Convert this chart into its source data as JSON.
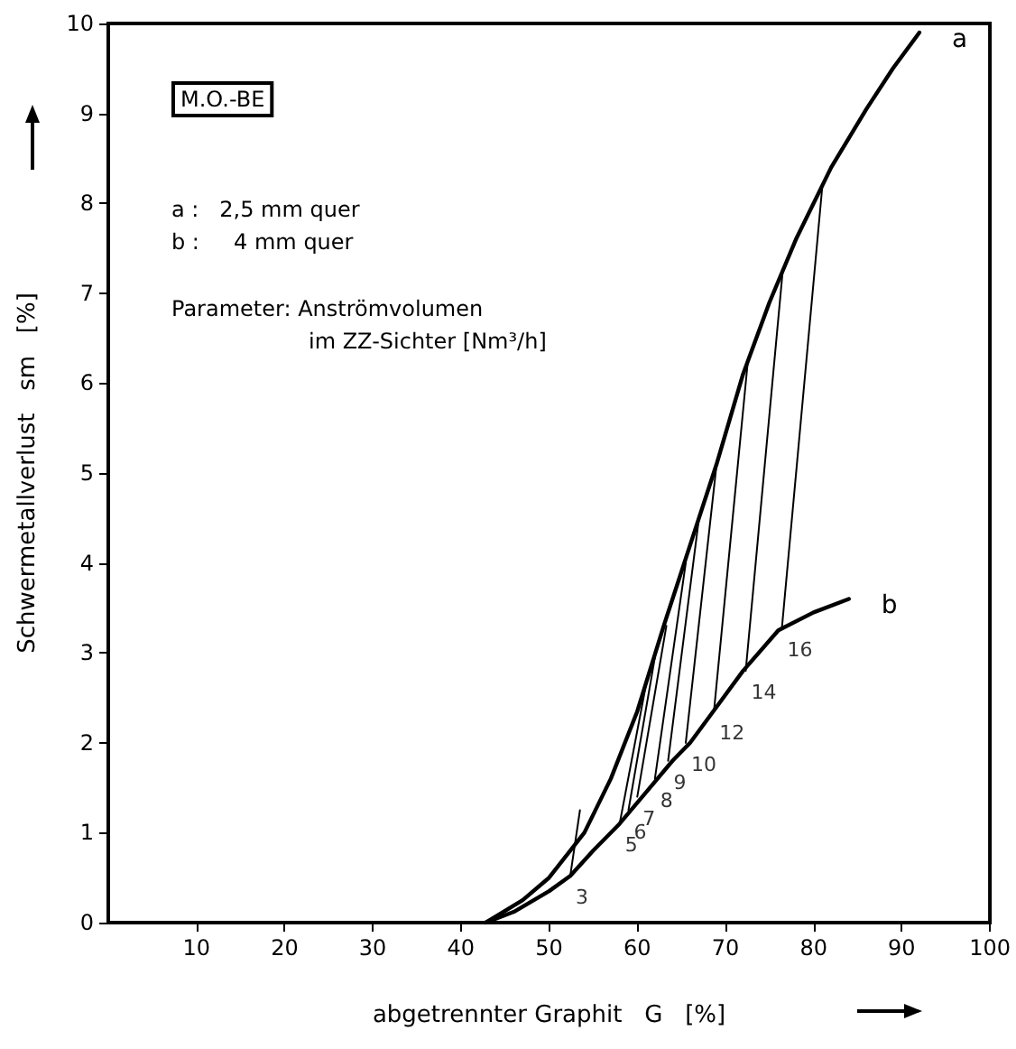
{
  "chart_data": {
    "type": "line",
    "xlabel": "abgetrennter Graphit   G   [%]",
    "ylabel": "Schwermetallverlust   sm   [%]",
    "xlim": [
      0,
      100
    ],
    "xticks": [
      10,
      20,
      30,
      40,
      50,
      60,
      70,
      80,
      90,
      100
    ],
    "ylim": [
      0,
      10
    ],
    "yticks": [
      0,
      1,
      2,
      3,
      4,
      5,
      6,
      7,
      8,
      9,
      10
    ],
    "grid": false,
    "legend": false,
    "marker": "none",
    "line_style": "solid",
    "series": [
      {
        "name": "a",
        "color": "#000000",
        "x": [
          42.8,
          47,
          50,
          54,
          57,
          60,
          63,
          66,
          69,
          72,
          75,
          78,
          82,
          86,
          89,
          92
        ],
        "values": [
          0,
          0.25,
          0.5,
          1.0,
          1.6,
          2.35,
          3.3,
          4.2,
          5.1,
          6.1,
          6.9,
          7.6,
          8.4,
          9.05,
          9.5,
          9.9
        ]
      },
      {
        "name": "b",
        "color": "#000000",
        "x": [
          42.8,
          46,
          50,
          52.4,
          55,
          58,
          61,
          64,
          66,
          69,
          72,
          76,
          80,
          84
        ],
        "values": [
          0,
          0.12,
          0.35,
          0.52,
          0.8,
          1.1,
          1.45,
          1.8,
          2.0,
          2.4,
          2.8,
          3.25,
          3.45,
          3.6
        ]
      },
      {
        "color": "#000000",
        "x": [
          52.4,
          53.5
        ],
        "values": [
          0.52,
          1.25
        ]
      },
      {
        "color": "#000000",
        "x": [
          58,
          61
        ],
        "values": [
          1.1,
          2.65
        ]
      },
      {
        "color": "#000000",
        "x": [
          59,
          62
        ],
        "values": [
          1.25,
          2.95
        ]
      },
      {
        "color": "#000000",
        "x": [
          60,
          63.3
        ],
        "values": [
          1.4,
          3.3
        ]
      },
      {
        "color": "#000000",
        "x": [
          62,
          65.5
        ],
        "values": [
          1.6,
          4.0
        ]
      },
      {
        "color": "#000000",
        "x": [
          63.5,
          67
        ],
        "values": [
          1.8,
          4.5
        ]
      },
      {
        "color": "#000000",
        "x": [
          65.5,
          69
        ],
        "values": [
          2.0,
          5.1
        ]
      },
      {
        "color": "#000000",
        "x": [
          68.7,
          72.5
        ],
        "values": [
          2.35,
          6.2
        ]
      },
      {
        "color": "#000000",
        "x": [
          72.3,
          76.5
        ],
        "values": [
          2.8,
          7.25
        ]
      },
      {
        "color": "#000000",
        "x": [
          76.4,
          81
        ],
        "values": [
          3.27,
          8.2
        ]
      }
    ],
    "annotations": [
      "M.O.-BE",
      "a :   2,5 mm quer",
      "b :     4 mm quer",
      "Parameter: Anströmvolumen",
      "im ZZ-Sichter [Nm³/h]",
      {
        "text": "3",
        "x": 52.4,
        "y": 0.52
      },
      {
        "text": "5",
        "x": 58,
        "y": 1.1
      },
      {
        "text": "6",
        "x": 59,
        "y": 1.25
      },
      {
        "text": "7",
        "x": 60,
        "y": 1.4
      },
      {
        "text": "8",
        "x": 62,
        "y": 1.6
      },
      {
        "text": "9",
        "x": 63.5,
        "y": 1.8
      },
      {
        "text": "10",
        "x": 65.5,
        "y": 2.0
      },
      {
        "text": "12",
        "x": 68.7,
        "y": 2.35
      },
      {
        "text": "14",
        "x": 72.3,
        "y": 2.8
      },
      {
        "text": "16",
        "x": 76.4,
        "y": 3.27
      }
    ]
  }
}
